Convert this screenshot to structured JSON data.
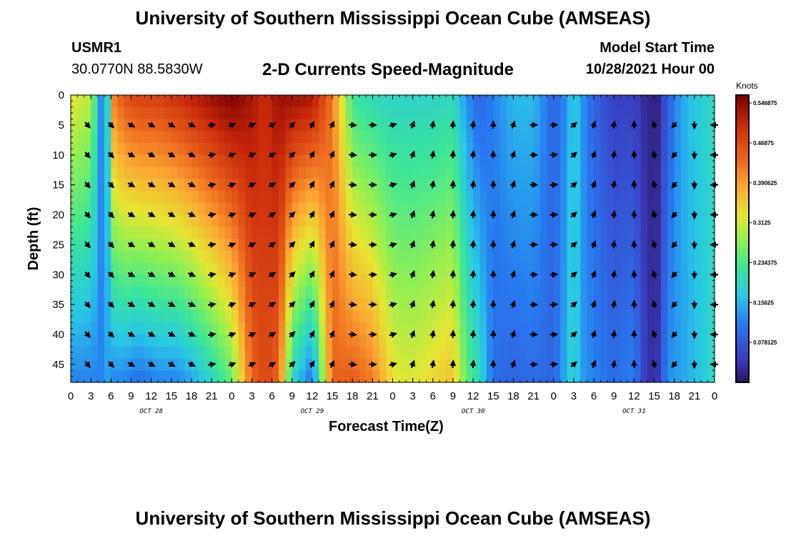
{
  "titles": {
    "main": "University of Southern Mississippi Ocean Cube (AMSEAS)",
    "footer": "University of Southern Mississippi Ocean Cube (AMSEAS)"
  },
  "station": {
    "id": "USMR1",
    "coords": "30.0770N  88.5830W"
  },
  "model": {
    "label": "Model Start Time",
    "time": "10/28/2021 Hour 00"
  },
  "colorbar_title": "Knots",
  "chart_data": {
    "type": "heatmap",
    "title": "2-D Currents Speed-Magnitude",
    "xlabel": "Forecast Time(Z)",
    "ylabel": "Depth (ft)",
    "x_ticks": [
      "0",
      "3",
      "6",
      "9",
      "12",
      "15",
      "18",
      "21",
      "0",
      "3",
      "6",
      "9",
      "12",
      "15",
      "18",
      "21",
      "0",
      "3",
      "6",
      "9",
      "12",
      "15",
      "18",
      "21",
      "0",
      "3",
      "6",
      "9",
      "12",
      "15",
      "18",
      "21",
      "0"
    ],
    "date_labels": [
      "OCT 28",
      "OCT 29",
      "OCT 30",
      "OCT 31"
    ],
    "y_ticks": [
      "0",
      "5",
      "10",
      "15",
      "20",
      "25",
      "30",
      "35",
      "40",
      "45"
    ],
    "x_range_hours": [
      0,
      96
    ],
    "y_range_ft": [
      0,
      48
    ],
    "colorbar": {
      "unit": "Knots",
      "range": [
        0.0,
        0.5625
      ],
      "tick_labels": [
        "0.546875",
        "0.46875",
        "0.390625",
        "0.3125",
        "0.234375",
        "0.15625",
        "0.078125"
      ]
    },
    "speed_profile": {
      "hours": [
        0,
        3,
        4.5,
        5.5,
        6.5,
        8,
        10,
        13,
        16,
        18.5,
        21,
        24,
        27,
        29,
        31,
        33,
        36,
        39,
        42,
        45,
        48,
        51,
        54,
        57,
        59,
        61,
        63,
        66,
        69,
        72,
        74,
        75,
        76,
        78,
        81,
        84,
        86,
        87.5,
        89,
        90.5,
        92,
        94,
        96
      ],
      "surface_knots": [
        0.33,
        0.3,
        0.13,
        0.19,
        0.42,
        0.46,
        0.48,
        0.48,
        0.5,
        0.52,
        0.54,
        0.56,
        0.53,
        0.5,
        0.54,
        0.54,
        0.53,
        0.42,
        0.22,
        0.2,
        0.19,
        0.19,
        0.19,
        0.2,
        0.13,
        0.09,
        0.12,
        0.16,
        0.16,
        0.09,
        0.13,
        0.19,
        0.14,
        0.09,
        0.05,
        0.05,
        0.02,
        0.02,
        0.08,
        0.13,
        0.16,
        0.18,
        0.2
      ],
      "bottom_knots": [
        0.12,
        0.12,
        0.12,
        0.14,
        0.12,
        0.12,
        0.1,
        0.12,
        0.12,
        0.15,
        0.19,
        0.25,
        0.44,
        0.47,
        0.44,
        0.19,
        0.1,
        0.44,
        0.45,
        0.42,
        0.33,
        0.32,
        0.34,
        0.36,
        0.25,
        0.2,
        0.1,
        0.09,
        0.1,
        0.09,
        0.16,
        0.2,
        0.14,
        0.12,
        0.1,
        0.12,
        0.03,
        0.04,
        0.13,
        0.14,
        0.15,
        0.17,
        0.2
      ]
    },
    "vector_columns": {
      "hours": [
        2.5,
        6,
        9,
        12,
        15,
        18,
        21,
        24,
        27,
        30,
        33,
        36,
        39,
        42,
        45,
        48,
        51,
        54,
        57,
        60,
        63,
        66,
        69,
        72,
        75,
        78,
        81,
        84,
        87,
        90,
        93,
        96
      ],
      "directions_deg": [
        140,
        135,
        120,
        120,
        120,
        115,
        80,
        70,
        65,
        60,
        45,
        30,
        25,
        95,
        90,
        75,
        20,
        10,
        5,
        5,
        0,
        20,
        90,
        85,
        50,
        20,
        10,
        0,
        345,
        220,
        180,
        270
      ]
    },
    "vector_depths_ft": [
      5,
      10,
      15,
      20,
      25,
      30,
      35,
      40,
      45
    ]
  }
}
